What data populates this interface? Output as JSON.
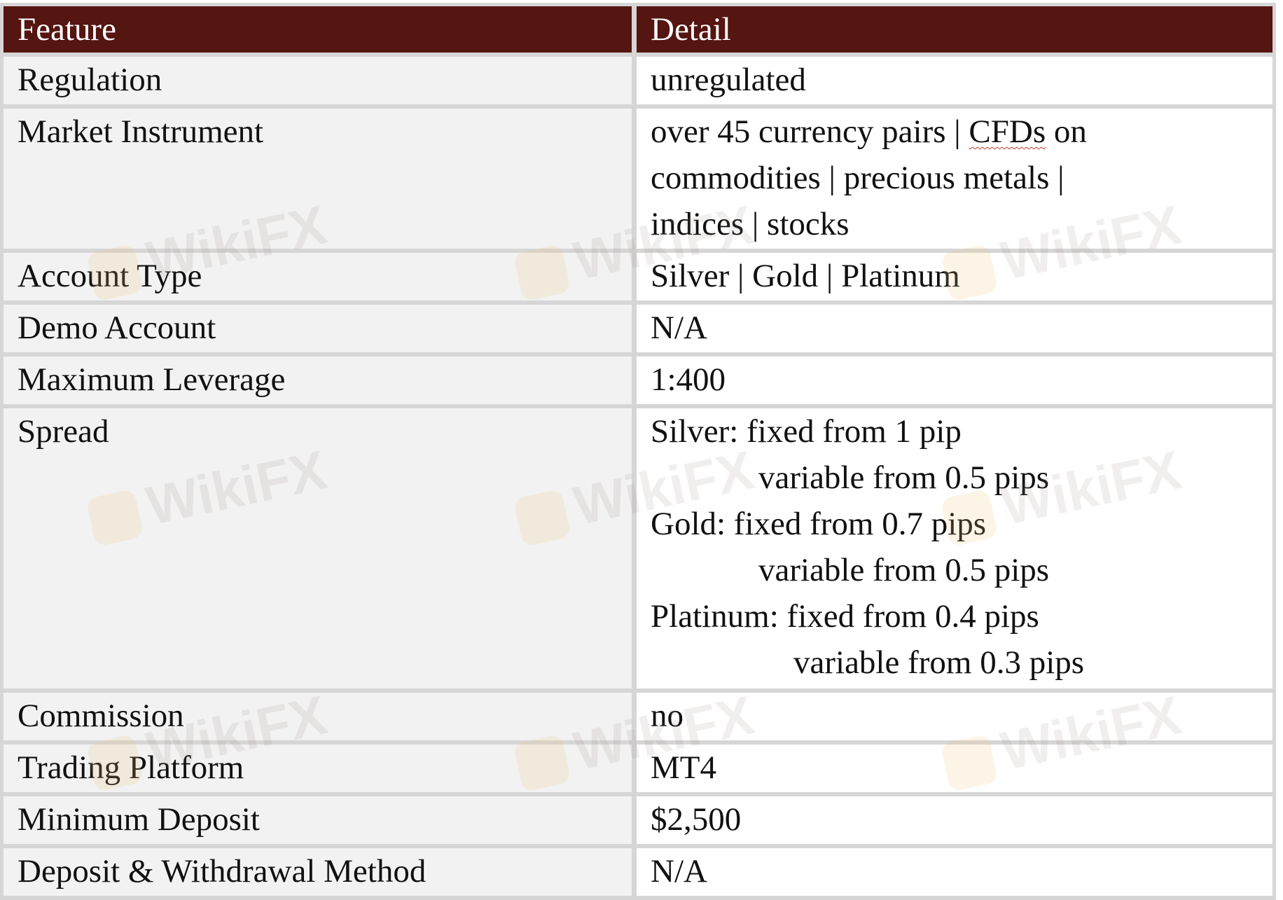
{
  "table": {
    "headers": [
      "Feature",
      "Detail"
    ],
    "rows": [
      {
        "feature": "Regulation",
        "detail": [
          "unregulated"
        ]
      },
      {
        "feature": "Market Instrument",
        "detail": [
          "over 45 currency pairs | ",
          "CFDs",
          " on",
          "commodities | precious metals |",
          "indices | stocks"
        ]
      },
      {
        "feature": "Account Type",
        "detail": [
          "Silver | Gold | Platinum"
        ]
      },
      {
        "feature": "Demo Account",
        "detail": [
          "N/A"
        ]
      },
      {
        "feature": "Maximum Leverage",
        "detail": [
          "1:400"
        ]
      },
      {
        "feature": "Spread",
        "detail": [
          "Silver: fixed from 1 pip",
          "variable from 0.5 pips",
          "Gold: fixed from 0.7 pips",
          "variable from 0.5 pips",
          "Platinum: fixed from 0.4 pips",
          "variable from 0.3 pips"
        ]
      },
      {
        "feature": "Commission",
        "detail": [
          "no"
        ]
      },
      {
        "feature": "Trading Platform",
        "detail": [
          "MT4"
        ]
      },
      {
        "feature": "Minimum Deposit",
        "detail": [
          "$2,500"
        ]
      },
      {
        "feature": "Deposit & Withdrawal Method",
        "detail": [
          "N/A"
        ]
      }
    ]
  },
  "watermark": "WikiFX",
  "colors": {
    "header_bg": "#551511",
    "header_text": "#ffffff",
    "feature_bg": "#f2f2f2",
    "detail_bg": "#ffffff",
    "border": "#d6d6d6"
  }
}
